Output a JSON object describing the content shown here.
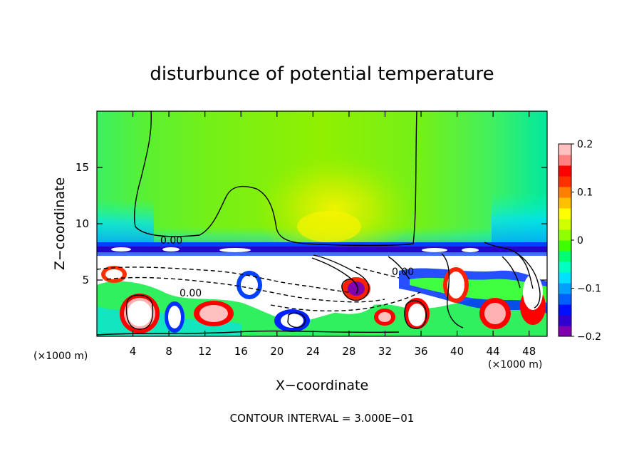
{
  "chart_data": {
    "type": "heatmap",
    "title": "disturbunce of potential temperature",
    "xlabel": "X−coordinate",
    "ylabel": "Z−coordinate",
    "x_unit_left": "(×1000 m)",
    "x_unit_right": "(×1000 m)",
    "footer": "CONTOUR INTERVAL = 3.000E−01",
    "xlim": [
      0,
      50
    ],
    "ylim": [
      0,
      20
    ],
    "x_ticks": [
      4,
      8,
      12,
      16,
      20,
      24,
      28,
      32,
      36,
      40,
      44,
      48
    ],
    "x_tick_labels": [
      "4",
      "8",
      "12",
      "16",
      "20",
      "24",
      "28",
      "32",
      "36",
      "40",
      "44",
      "48"
    ],
    "y_ticks": [
      5,
      10,
      15
    ],
    "y_tick_labels": [
      "5",
      "10",
      "15"
    ],
    "colorbar": {
      "min": -0.2,
      "max": 0.2,
      "ticks": [
        0.2,
        0.1,
        0,
        -0.1,
        -0.2
      ],
      "tick_labels": [
        "0.2",
        "0.1",
        "0",
        "−0.1",
        "−0.2"
      ],
      "colors": [
        "#8000b0",
        "#3000d0",
        "#0010ff",
        "#0060ff",
        "#00a0ff",
        "#00e0ff",
        "#00ffc0",
        "#00ff70",
        "#40ff00",
        "#90ff00",
        "#d0ff00",
        "#ffff00",
        "#ffc000",
        "#ff8000",
        "#ff3000",
        "#ff0000",
        "#ff8080",
        "#ffc0c0"
      ]
    },
    "contour_labels": [
      {
        "text": "0.00",
        "x": 7.0,
        "z": 8.5
      },
      {
        "text": "0.00",
        "x": 8.5,
        "z": 4.0
      },
      {
        "text": "0.00",
        "x": 33.5,
        "z": 5.6
      }
    ],
    "regions": {
      "upper_field": "near-zero positive disturbance (green, yellow-green core over x 20-36)",
      "inversion_band": "strong negative band (blue/purple) near z = 7.5",
      "lower_layer": "turbulent mixed positive/negative disturbances (red, white, blue) below z = 7"
    }
  }
}
